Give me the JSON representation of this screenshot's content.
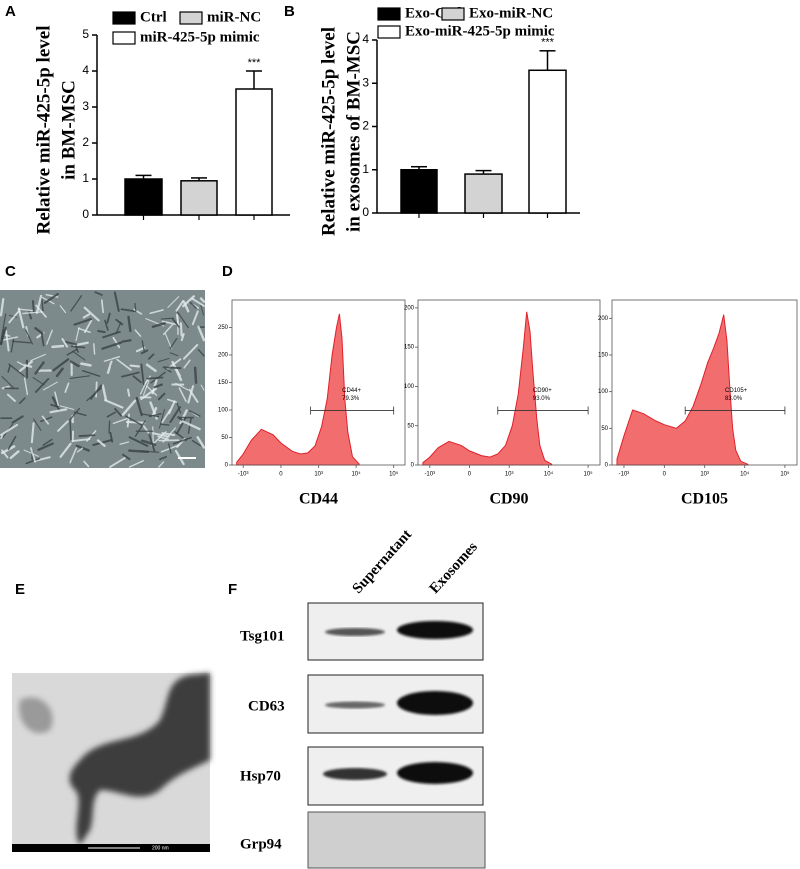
{
  "panel_labels": [
    "A",
    "B",
    "C",
    "D",
    "E",
    "F"
  ],
  "chart_data": [
    {
      "type": "bar",
      "ylabel": [
        "Relative miR-425-5p level",
        "in BM-MSC"
      ],
      "ylim": [
        0,
        5
      ],
      "yticks": [
        0,
        1,
        2,
        3,
        4,
        5
      ],
      "series": [
        {
          "name": "Ctrl",
          "color": "#000000",
          "values": [
            1.0
          ],
          "errors": [
            0.1
          ]
        },
        {
          "name": "miR-NC",
          "color": "#d3d3d3",
          "values": [
            0.95
          ],
          "errors": [
            0.08
          ]
        },
        {
          "name": "miR-425-5p mimic",
          "color": "#ffffff",
          "values": [
            3.5
          ],
          "errors": [
            0.5
          ],
          "annotation": "***"
        }
      ]
    },
    {
      "type": "bar",
      "ylabel": [
        "Relative miR-425-5p level",
        "in exosomes of BM-MSC"
      ],
      "ylim": [
        0,
        4
      ],
      "yticks": [
        0,
        1,
        2,
        3,
        4
      ],
      "series": [
        {
          "name": "Exo-Ctrl",
          "color": "#000000",
          "values": [
            1.0
          ],
          "errors": [
            0.07
          ]
        },
        {
          "name": "Exo-miR-NC",
          "color": "#d3d3d3",
          "values": [
            0.9
          ],
          "errors": [
            0.08
          ]
        },
        {
          "name": "Exo-miR-425-5p mimic",
          "color": "#ffffff",
          "values": [
            3.3
          ],
          "errors": [
            0.45
          ],
          "annotation": "***"
        }
      ]
    },
    {
      "type": "area",
      "xlabel": "CD44",
      "color": "#f26d6d",
      "xscale": "biexponential",
      "xlim": [
        -2000,
        200000
      ],
      "ylim": [
        0,
        300
      ],
      "yticks": [
        0,
        50,
        100,
        150,
        200,
        250
      ],
      "xticks": [
        {
          "value": -1000,
          "label": "-10³"
        },
        0,
        {
          "value": 1000,
          "label": "10³"
        },
        {
          "value": 10000,
          "label": "10⁴"
        },
        {
          "value": 100000,
          "label": "10⁵"
        }
      ],
      "x": [
        -1500,
        -1000,
        -600,
        -300,
        -100,
        0,
        150,
        300,
        500,
        800,
        1200,
        1700,
        2300,
        3000,
        3600,
        4200,
        5000,
        6000,
        8000,
        12000
      ],
      "values": [
        5,
        20,
        45,
        65,
        55,
        40,
        25,
        20,
        22,
        35,
        70,
        120,
        200,
        250,
        275,
        230,
        120,
        60,
        15,
        2
      ],
      "gate": [
        600,
        100000
      ],
      "gate_label": "CD44+",
      "gate_percent": 79.3,
      "gate_percent_label": "79.3%"
    },
    {
      "type": "area",
      "xlabel": "CD90",
      "color": "#f26d6d",
      "xscale": "biexponential",
      "xlim": [
        -2000,
        200000
      ],
      "ylim": [
        0,
        210
      ],
      "yticks": [
        0,
        50,
        100,
        150,
        200
      ],
      "xticks": [
        {
          "value": -1000,
          "label": "-10³"
        },
        0,
        {
          "value": 1000,
          "label": "10³"
        },
        {
          "value": 10000,
          "label": "10⁴"
        },
        {
          "value": 100000,
          "label": "10⁵"
        }
      ],
      "x": [
        -1500,
        -1000,
        -600,
        -300,
        -100,
        0,
        150,
        300,
        500,
        800,
        1200,
        1700,
        2300,
        2800,
        3400,
        4000,
        5000,
        6000,
        8000,
        12000
      ],
      "values": [
        3,
        10,
        22,
        30,
        25,
        18,
        12,
        10,
        14,
        25,
        50,
        90,
        150,
        195,
        170,
        120,
        60,
        25,
        6,
        1
      ],
      "gate": [
        500,
        100000
      ],
      "gate_label": "CD90+",
      "gate_percent": 93.0,
      "gate_percent_label": "93.0%"
    },
    {
      "type": "area",
      "xlabel": "CD105",
      "color": "#f26d6d",
      "xscale": "biexponential",
      "xlim": [
        -2000,
        200000
      ],
      "ylim": [
        0,
        225
      ],
      "yticks": [
        0,
        50,
        100,
        150,
        200
      ],
      "xticks": [
        {
          "value": -1000,
          "label": "-10³"
        },
        0,
        {
          "value": 1000,
          "label": "10³"
        },
        {
          "value": 10000,
          "label": "10⁴"
        },
        {
          "value": 100000,
          "label": "10⁵"
        }
      ],
      "x": [
        -1500,
        -1000,
        -600,
        -300,
        -100,
        0,
        150,
        300,
        500,
        800,
        1200,
        1700,
        2300,
        3000,
        3600,
        4200,
        5000,
        6000,
        8000,
        12000
      ],
      "values": [
        8,
        40,
        75,
        70,
        60,
        55,
        50,
        60,
        80,
        110,
        140,
        160,
        180,
        205,
        170,
        110,
        50,
        20,
        5,
        1
      ],
      "gate": [
        300,
        100000
      ],
      "gate_label": "CD105+",
      "gate_percent": 83.0,
      "gate_percent_label": "83.0%"
    }
  ],
  "tem": {
    "scale_bar": "200 nm"
  },
  "western_blot": {
    "columns": [
      "Supernatant",
      "Exosomes"
    ],
    "rows": [
      "Tsg101",
      "CD63",
      "Hsp70",
      "Grp94"
    ]
  }
}
